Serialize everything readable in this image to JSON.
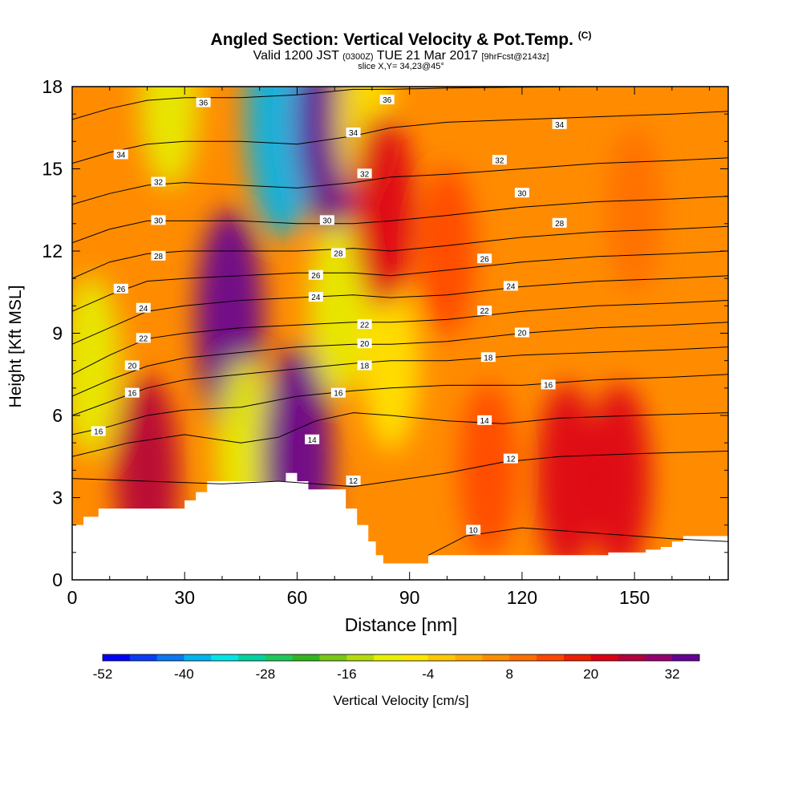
{
  "header": {
    "title": "Angled Section: Vertical Velocity & Pot.Temp.",
    "title_unit": "(C)",
    "valid_prefix": "Valid 1200 JST",
    "valid_z": "(0300Z)",
    "valid_date": "TUE 21 Mar 2017",
    "forecast": "[9hrFcst@2143z]",
    "slice": "slice X,Y= 34,23@45°"
  },
  "chart_data": {
    "type": "heatmap",
    "title": "Angled Section: Vertical Velocity & Pot.Temp. (C)",
    "xlabel": "Distance [nm]",
    "ylabel": "Height [Kft MSL]",
    "xlim": [
      0,
      175
    ],
    "ylim": [
      0,
      18
    ],
    "xticks": [
      0,
      30,
      60,
      90,
      120,
      150
    ],
    "yticks": [
      0,
      3,
      6,
      9,
      12,
      15,
      18
    ],
    "colorbar": {
      "label": "Vertical Velocity [cm/s]",
      "ticks": [
        -52,
        -40,
        -28,
        -16,
        -4,
        8,
        20,
        32
      ],
      "colors": [
        "#0000ff",
        "#0a3cf5",
        "#0a78f0",
        "#00b4f0",
        "#00e6e6",
        "#00d2a0",
        "#1ec85a",
        "#32b41e",
        "#78c814",
        "#b4dc0a",
        "#e6f000",
        "#ffe600",
        "#ffc800",
        "#ffaa00",
        "#ff8c00",
        "#ff6e00",
        "#ff4600",
        "#f01e00",
        "#dc0014",
        "#b4003c",
        "#96006e",
        "#640096"
      ]
    },
    "theta_contours": [
      {
        "label": "10",
        "x": [
          95,
          105,
          120,
          140,
          160,
          175
        ],
        "y": [
          0.9,
          1.6,
          1.9,
          1.7,
          1.5,
          1.4
        ]
      },
      {
        "label": "12",
        "x": [
          0,
          20,
          40,
          55,
          65,
          75,
          85,
          100,
          115,
          130,
          150,
          175
        ],
        "y": [
          3.7,
          3.6,
          3.5,
          3.6,
          3.5,
          3.4,
          3.6,
          3.9,
          4.3,
          4.5,
          4.6,
          4.7
        ]
      },
      {
        "label": "14",
        "x": [
          0,
          15,
          30,
          45,
          55,
          65,
          75,
          85,
          100,
          115,
          130,
          150,
          175
        ],
        "y": [
          4.5,
          5.0,
          5.3,
          5.0,
          5.2,
          5.8,
          6.1,
          6.0,
          5.8,
          5.7,
          5.9,
          6.0,
          6.1
        ]
      },
      {
        "label": "16",
        "x": [
          0,
          10,
          20,
          30,
          45,
          60,
          75,
          85,
          100,
          120,
          140,
          160,
          175
        ],
        "y": [
          5.3,
          5.6,
          6.0,
          6.2,
          6.3,
          6.7,
          6.9,
          7.0,
          7.1,
          7.1,
          7.3,
          7.4,
          7.5
        ]
      },
      {
        "label": "18",
        "x": [
          0,
          10,
          20,
          30,
          45,
          60,
          75,
          85,
          100,
          120,
          140,
          160,
          175
        ],
        "y": [
          6.0,
          6.5,
          7.0,
          7.3,
          7.5,
          7.7,
          7.9,
          8.0,
          8.0,
          8.2,
          8.3,
          8.4,
          8.5
        ]
      },
      {
        "label": "20",
        "x": [
          0,
          10,
          20,
          30,
          45,
          60,
          75,
          85,
          100,
          120,
          140,
          160,
          175
        ],
        "y": [
          6.7,
          7.3,
          7.8,
          8.1,
          8.3,
          8.5,
          8.6,
          8.6,
          8.7,
          9.0,
          9.2,
          9.3,
          9.4
        ]
      },
      {
        "label": "22",
        "x": [
          0,
          10,
          20,
          30,
          45,
          60,
          75,
          85,
          100,
          120,
          140,
          160,
          175
        ],
        "y": [
          7.5,
          8.2,
          8.8,
          9.0,
          9.2,
          9.3,
          9.4,
          9.4,
          9.5,
          9.8,
          10.0,
          10.1,
          10.2
        ]
      },
      {
        "label": "24",
        "x": [
          0,
          10,
          20,
          30,
          45,
          60,
          75,
          85,
          100,
          120,
          140,
          160,
          175
        ],
        "y": [
          8.6,
          9.2,
          9.8,
          10.0,
          10.2,
          10.3,
          10.4,
          10.3,
          10.4,
          10.7,
          10.9,
          11.0,
          11.1
        ]
      },
      {
        "label": "26",
        "x": [
          0,
          10,
          20,
          30,
          45,
          60,
          75,
          85,
          100,
          120,
          140,
          160,
          175
        ],
        "y": [
          9.8,
          10.4,
          10.9,
          11.0,
          11.1,
          11.2,
          11.2,
          11.1,
          11.3,
          11.6,
          11.8,
          11.9,
          12.0
        ]
      },
      {
        "label": "28",
        "x": [
          0,
          10,
          20,
          30,
          45,
          60,
          75,
          85,
          100,
          120,
          140,
          160,
          175
        ],
        "y": [
          11.0,
          11.6,
          11.9,
          12.0,
          12.0,
          12.0,
          12.1,
          12.0,
          12.2,
          12.5,
          12.7,
          12.8,
          12.9
        ]
      },
      {
        "label": "30",
        "x": [
          0,
          10,
          20,
          30,
          45,
          60,
          75,
          85,
          100,
          120,
          140,
          160,
          175
        ],
        "y": [
          12.3,
          12.8,
          13.1,
          13.1,
          13.1,
          13.0,
          13.0,
          13.1,
          13.3,
          13.6,
          13.8,
          13.9,
          14.0
        ]
      },
      {
        "label": "32",
        "x": [
          0,
          10,
          20,
          30,
          45,
          60,
          75,
          85,
          100,
          120,
          140,
          160,
          175
        ],
        "y": [
          13.7,
          14.1,
          14.4,
          14.5,
          14.4,
          14.3,
          14.5,
          14.7,
          14.8,
          15.0,
          15.2,
          15.3,
          15.4
        ]
      },
      {
        "label": "34",
        "x": [
          0,
          10,
          20,
          30,
          45,
          60,
          75,
          85,
          100,
          120,
          140,
          160,
          175
        ],
        "y": [
          15.2,
          15.6,
          15.9,
          16.0,
          16.0,
          15.9,
          16.2,
          16.5,
          16.7,
          16.8,
          16.9,
          17.0,
          17.1
        ]
      },
      {
        "label": "36",
        "x": [
          0,
          10,
          20,
          30,
          45,
          60,
          75,
          85,
          100,
          120,
          140,
          160,
          175
        ],
        "y": [
          16.8,
          17.2,
          17.5,
          17.6,
          17.6,
          17.7,
          17.9,
          17.9,
          17.95,
          17.98,
          18.0,
          18.0,
          18.0
        ]
      }
    ],
    "contour_labels": [
      {
        "text": "36",
        "x": 35,
        "y": 17.4
      },
      {
        "text": "36",
        "x": 84,
        "y": 17.5
      },
      {
        "text": "34",
        "x": 13,
        "y": 15.5
      },
      {
        "text": "34",
        "x": 75,
        "y": 16.3
      },
      {
        "text": "34",
        "x": 130,
        "y": 16.6
      },
      {
        "text": "32",
        "x": 23,
        "y": 14.5
      },
      {
        "text": "32",
        "x": 78,
        "y": 14.8
      },
      {
        "text": "32",
        "x": 114,
        "y": 15.3
      },
      {
        "text": "30",
        "x": 23,
        "y": 13.1
      },
      {
        "text": "30",
        "x": 68,
        "y": 13.1
      },
      {
        "text": "30",
        "x": 120,
        "y": 14.1
      },
      {
        "text": "28",
        "x": 23,
        "y": 11.8
      },
      {
        "text": "28",
        "x": 71,
        "y": 11.9
      },
      {
        "text": "28",
        "x": 130,
        "y": 13.0
      },
      {
        "text": "26",
        "x": 13,
        "y": 10.6
      },
      {
        "text": "26",
        "x": 65,
        "y": 11.1
      },
      {
        "text": "26",
        "x": 110,
        "y": 11.7
      },
      {
        "text": "24",
        "x": 19,
        "y": 9.9
      },
      {
        "text": "24",
        "x": 65,
        "y": 10.3
      },
      {
        "text": "24",
        "x": 117,
        "y": 10.7
      },
      {
        "text": "22",
        "x": 19,
        "y": 8.8
      },
      {
        "text": "22",
        "x": 78,
        "y": 9.3
      },
      {
        "text": "22",
        "x": 110,
        "y": 9.8
      },
      {
        "text": "20",
        "x": 16,
        "y": 7.8
      },
      {
        "text": "20",
        "x": 78,
        "y": 8.6
      },
      {
        "text": "20",
        "x": 120,
        "y": 9.0
      },
      {
        "text": "18",
        "x": 78,
        "y": 7.8
      },
      {
        "text": "18",
        "x": 111,
        "y": 8.1
      },
      {
        "text": "16",
        "x": 16,
        "y": 6.8
      },
      {
        "text": "16",
        "x": 71,
        "y": 6.8
      },
      {
        "text": "16",
        "x": 127,
        "y": 7.1
      },
      {
        "text": "16",
        "x": 7,
        "y": 5.4
      },
      {
        "text": "14",
        "x": 64,
        "y": 5.1
      },
      {
        "text": "14",
        "x": 110,
        "y": 5.8
      },
      {
        "text": "12",
        "x": 75,
        "y": 3.6
      },
      {
        "text": "12",
        "x": 117,
        "y": 4.4
      },
      {
        "text": "10",
        "x": 107,
        "y": 1.8
      }
    ],
    "velocity_features": [
      {
        "value": -14,
        "x": 5,
        "y": 7.8
      },
      {
        "value": 22,
        "x": 20,
        "y": 3.8
      },
      {
        "value": 30,
        "x": 42,
        "y": 9.5
      },
      {
        "value": -14,
        "x": 46,
        "y": 4.8
      },
      {
        "value": -12,
        "x": 26,
        "y": 17.5
      },
      {
        "value": -40,
        "x": 56,
        "y": 17.0
      },
      {
        "value": 34,
        "x": 60,
        "y": 4.3
      },
      {
        "value": -14,
        "x": 71,
        "y": 10.0
      },
      {
        "value": 30,
        "x": 69,
        "y": 16.8
      },
      {
        "value": -10,
        "x": 78,
        "y": 17.0
      },
      {
        "value": -10,
        "x": 85,
        "y": 7.8
      },
      {
        "value": 20,
        "x": 83,
        "y": 13.5
      },
      {
        "value": 10,
        "x": 100,
        "y": 12.0
      },
      {
        "value": 12,
        "x": 111,
        "y": 4.0
      },
      {
        "value": 18,
        "x": 132,
        "y": 3.7
      },
      {
        "value": 18,
        "x": 146,
        "y": 3.7
      },
      {
        "value": 8,
        "x": 150,
        "y": 13.5
      }
    ],
    "terrain": {
      "x": [
        0,
        3,
        3,
        7,
        7,
        10,
        10,
        30,
        30,
        33,
        33,
        36,
        36,
        57,
        57,
        60,
        60,
        63,
        63,
        73,
        73,
        76,
        76,
        79,
        79,
        81,
        81,
        83,
        83,
        95,
        95,
        143,
        143,
        153,
        153,
        157,
        157,
        160,
        160,
        163,
        163,
        170,
        170,
        175
      ],
      "y": [
        2,
        2,
        2.3,
        2.3,
        2.6,
        2.6,
        2.6,
        2.6,
        2.9,
        2.9,
        3.2,
        3.2,
        3.6,
        3.6,
        3.9,
        3.9,
        3.6,
        3.6,
        3.3,
        3.3,
        2.6,
        2.6,
        2.0,
        2.0,
        1.4,
        1.4,
        0.9,
        0.9,
        0.6,
        0.6,
        0.9,
        0.9,
        1.0,
        1.0,
        1.1,
        1.1,
        1.2,
        1.2,
        1.4,
        1.4,
        1.6,
        1.6,
        1.6,
        1.6
      ]
    }
  },
  "axes": {
    "xlabel": "Distance [nm]",
    "ylabel": "Height [Kft MSL]",
    "colorbar_label": "Vertical Velocity [cm/s]"
  }
}
